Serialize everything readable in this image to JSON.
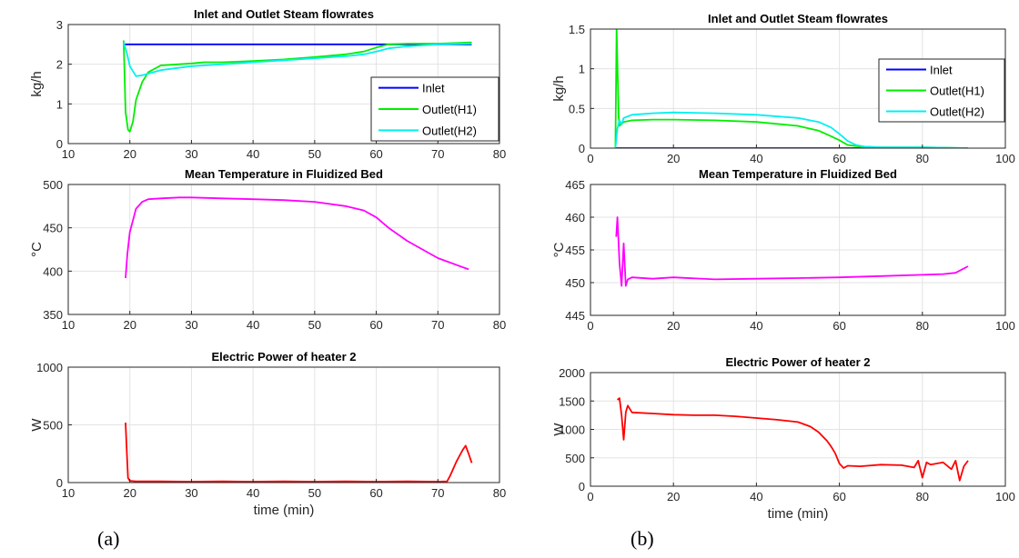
{
  "captions": [
    "(a)",
    "(b)"
  ],
  "colors": {
    "inlet": "#0000ff",
    "outlet_h1": "#00ee00",
    "outlet_h2": "#00f0f0",
    "temperature": "#ff00ff",
    "power": "#ff0000"
  },
  "chart_data": [
    {
      "type": "line",
      "panel": "a",
      "title": "Inlet and Outlet Steam flowrates",
      "xlabel": "",
      "ylabel": "kg/h",
      "xlim": [
        10,
        80
      ],
      "ylim": [
        0,
        3
      ],
      "xticks": [
        10,
        20,
        30,
        40,
        50,
        60,
        70,
        80
      ],
      "yticks": [
        0,
        1,
        2,
        3
      ],
      "grid": true,
      "legend": "center-right",
      "series": [
        {
          "name": "Inlet",
          "color": "#0000ff",
          "x": [
            19,
            19.5,
            75.5
          ],
          "y": [
            2.5,
            2.5,
            2.5
          ]
        },
        {
          "name": "Outlet(H1)",
          "color": "#00ee00",
          "x": [
            19,
            19.3,
            19.7,
            20,
            20.5,
            21,
            22,
            23,
            25,
            28,
            30,
            32,
            35,
            40,
            45,
            50,
            55,
            58,
            60,
            62,
            65,
            70,
            75.5
          ],
          "y": [
            2.6,
            0.8,
            0.35,
            0.3,
            0.55,
            1.1,
            1.55,
            1.8,
            1.97,
            2.0,
            2.02,
            2.05,
            2.05,
            2.08,
            2.12,
            2.18,
            2.25,
            2.32,
            2.42,
            2.5,
            2.52,
            2.52,
            2.55
          ]
        },
        {
          "name": "Outlet(H2)",
          "color": "#00f0f0",
          "x": [
            19,
            19.5,
            20,
            21,
            22,
            25,
            30,
            35,
            40,
            45,
            50,
            55,
            58,
            60,
            62,
            65,
            70,
            75.5
          ],
          "y": [
            2.55,
            2.3,
            1.95,
            1.7,
            1.72,
            1.85,
            1.95,
            2.0,
            2.05,
            2.1,
            2.15,
            2.2,
            2.25,
            2.32,
            2.4,
            2.45,
            2.5,
            2.52
          ]
        }
      ]
    },
    {
      "type": "line",
      "panel": "a",
      "title": "Mean Temperature in Fluidized Bed",
      "xlabel": "",
      "ylabel": "°C",
      "xlim": [
        10,
        80
      ],
      "ylim": [
        350,
        500
      ],
      "xticks": [
        10,
        20,
        30,
        40,
        50,
        60,
        70,
        80
      ],
      "yticks": [
        350,
        400,
        450,
        500
      ],
      "grid": true,
      "series": [
        {
          "color": "#ff00ff",
          "x": [
            19.3,
            19.6,
            20,
            21,
            22,
            23,
            25,
            28,
            30,
            35,
            40,
            45,
            50,
            55,
            58,
            60,
            62,
            65,
            70,
            75
          ],
          "y": [
            392,
            420,
            445,
            472,
            480,
            483,
            484,
            485,
            485,
            484,
            483,
            482,
            480,
            475,
            470,
            462,
            450,
            435,
            415,
            402
          ]
        }
      ]
    },
    {
      "type": "line",
      "panel": "a",
      "title": "Electric Power of heater 2",
      "xlabel": "time (min)",
      "ylabel": "W",
      "xlim": [
        10,
        80
      ],
      "ylim": [
        0,
        1000
      ],
      "xticks": [
        10,
        20,
        30,
        40,
        50,
        60,
        70,
        80
      ],
      "yticks": [
        0,
        500,
        1000
      ],
      "grid": true,
      "series": [
        {
          "color": "#ff0000",
          "x": [
            19.3,
            19.5,
            19.7,
            20,
            21,
            25,
            30,
            35,
            40,
            45,
            50,
            55,
            60,
            65,
            70,
            71.5,
            72,
            73,
            74,
            74.5,
            75,
            75.5
          ],
          "y": [
            520,
            280,
            40,
            15,
            10,
            10,
            8,
            10,
            8,
            10,
            8,
            10,
            8,
            10,
            8,
            10,
            60,
            180,
            280,
            320,
            250,
            170
          ]
        }
      ]
    },
    {
      "type": "line",
      "panel": "b",
      "title": "Inlet and Outlet Steam flowrates",
      "xlabel": "",
      "ylabel": "kg/h",
      "xlim": [
        0,
        100
      ],
      "ylim": [
        0,
        1.5
      ],
      "xticks": [
        0,
        20,
        40,
        60,
        80,
        100
      ],
      "yticks": [
        0,
        0.5,
        1,
        1.5
      ],
      "grid": true,
      "legend": "top-right",
      "series": [
        {
          "name": "Inlet",
          "color": "#0000ff",
          "x": [
            6,
            6.5,
            91
          ],
          "y": [
            0,
            0,
            0
          ]
        },
        {
          "name": "Outlet(H1)",
          "color": "#00ee00",
          "x": [
            6,
            6.3,
            6.8,
            7,
            8,
            10,
            15,
            20,
            30,
            40,
            50,
            55,
            58,
            60,
            62,
            65,
            70,
            80,
            91
          ],
          "y": [
            0,
            1.5,
            0.4,
            0.28,
            0.33,
            0.35,
            0.36,
            0.36,
            0.35,
            0.33,
            0.28,
            0.22,
            0.15,
            0.1,
            0.04,
            0.02,
            0.01,
            0.01,
            0.0
          ]
        },
        {
          "name": "Outlet(H2)",
          "color": "#00f0f0",
          "x": [
            6,
            6.5,
            7,
            7.5,
            8,
            10,
            15,
            20,
            30,
            40,
            50,
            55,
            58,
            60,
            62,
            64,
            66,
            70,
            80,
            91
          ],
          "y": [
            0,
            0.25,
            0.35,
            0.3,
            0.38,
            0.42,
            0.44,
            0.45,
            0.44,
            0.42,
            0.38,
            0.33,
            0.26,
            0.18,
            0.09,
            0.04,
            0.02,
            0.01,
            0.01,
            0.0
          ]
        }
      ]
    },
    {
      "type": "line",
      "panel": "b",
      "title": "Mean Temperature in Fluidized Bed",
      "xlabel": "",
      "ylabel": "°C",
      "xlim": [
        0,
        100
      ],
      "ylim": [
        445,
        465
      ],
      "xticks": [
        0,
        20,
        40,
        60,
        80,
        100
      ],
      "yticks": [
        445,
        450,
        455,
        460,
        465
      ],
      "grid": true,
      "series": [
        {
          "color": "#ff00ff",
          "x": [
            6.2,
            6.5,
            7,
            7.5,
            8,
            8.5,
            9,
            10,
            15,
            20,
            30,
            40,
            50,
            60,
            70,
            80,
            85,
            88,
            91
          ],
          "y": [
            457,
            460,
            453,
            449.5,
            456,
            449.5,
            450.5,
            450.8,
            450.6,
            450.8,
            450.5,
            450.6,
            450.7,
            450.8,
            451,
            451.2,
            451.3,
            451.5,
            452.5
          ]
        }
      ]
    },
    {
      "type": "line",
      "panel": "b",
      "title": "Electric Power of heater 2",
      "xlabel": "time (min)",
      "ylabel": "W",
      "xlim": [
        0,
        100
      ],
      "ylim": [
        0,
        2000
      ],
      "xticks": [
        0,
        20,
        40,
        60,
        80,
        100
      ],
      "yticks": [
        0,
        500,
        1000,
        1500,
        2000
      ],
      "grid": true,
      "series": [
        {
          "color": "#ff0000",
          "x": [
            6.5,
            7,
            7.5,
            8,
            8.5,
            9,
            10,
            15,
            20,
            25,
            30,
            35,
            40,
            45,
            50,
            53,
            55,
            57,
            58,
            59,
            60,
            61,
            62,
            65,
            70,
            75,
            78,
            79,
            80,
            81,
            82,
            85,
            87,
            88,
            89,
            90,
            91
          ],
          "y": [
            1520,
            1550,
            1250,
            820,
            1300,
            1420,
            1300,
            1280,
            1260,
            1250,
            1250,
            1230,
            1200,
            1170,
            1130,
            1050,
            950,
            800,
            700,
            580,
            400,
            320,
            360,
            350,
            380,
            370,
            330,
            450,
            150,
            420,
            380,
            420,
            300,
            450,
            100,
            350,
            450
          ]
        }
      ]
    }
  ]
}
